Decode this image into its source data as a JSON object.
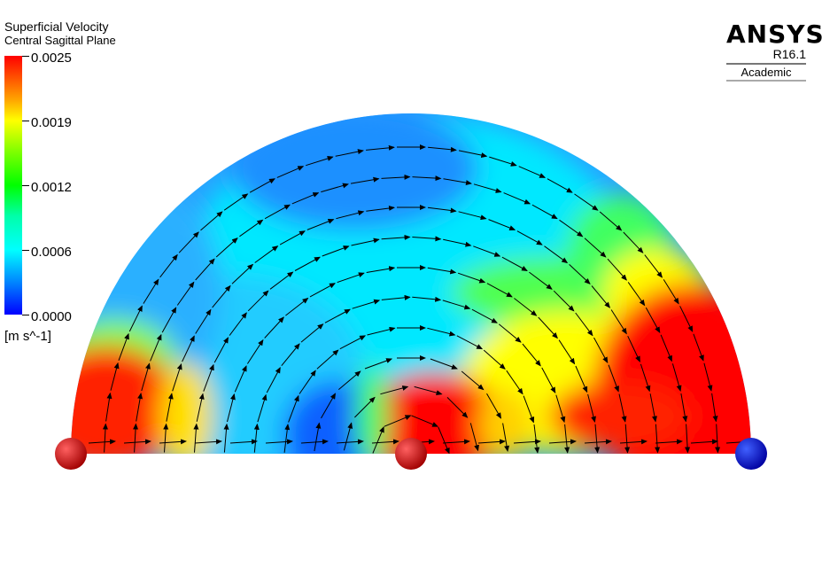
{
  "legend": {
    "title": "Superficial Velocity",
    "subtitle": "Central Sagittal Plane",
    "ticks": [
      "0.0025",
      "0.0019",
      "0.0012",
      "0.0006",
      "0.0000"
    ],
    "unit": "[m s^-1]"
  },
  "logo": {
    "brand": "ANSYS",
    "version": "R16.1",
    "edition": "Academic"
  },
  "colors": {
    "max": "#ff0000",
    "high": "#ffff00",
    "mid": "#00ff00",
    "low": "#00ffff",
    "min": "#0000ff",
    "arrow": "#000000"
  },
  "markers": [
    {
      "name": "left-sphere",
      "color": "#d01010"
    },
    {
      "name": "center-sphere",
      "color": "#d01010"
    },
    {
      "name": "right-sphere",
      "color": "#0000dd"
    }
  ]
}
